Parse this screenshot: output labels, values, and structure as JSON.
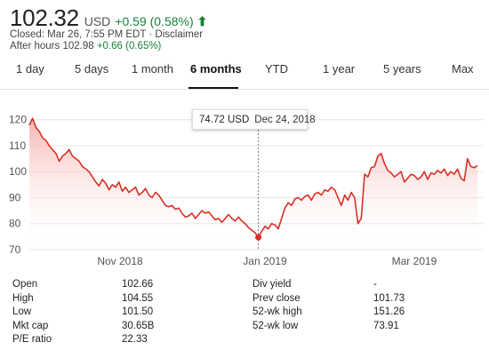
{
  "quote": {
    "price": "102.32",
    "currency": "USD",
    "change": "+0.59 (0.58%)",
    "arrow": "⬆",
    "closed_text": "Closed: Mar 26, 7:55 PM EDT · Disclaimer",
    "after_hours_label": "After hours 102.98",
    "after_hours_change": "+0.66 (0.65%)"
  },
  "tabs": [
    "1 day",
    "5 days",
    "1 month",
    "6 months",
    "YTD",
    "1 year",
    "5 years",
    "Max"
  ],
  "active_tab": "6 months",
  "tooltip": {
    "price": "74.72 USD",
    "date": "Dec 24, 2018"
  },
  "colors": {
    "line": "#d93025",
    "up": "#188038",
    "fill_top": "#f4a7a3"
  },
  "chart_data": {
    "type": "area",
    "x_labels": [
      "Nov 2018",
      "Jan 2019",
      "Mar 2019"
    ],
    "y_ticks": [
      70,
      80,
      90,
      100,
      110,
      120
    ],
    "ylim": [
      70,
      124
    ],
    "highlight_point": {
      "date": "Dec 24, 2018",
      "value": 74.72
    },
    "series": [
      {
        "values": [
          118,
          120.5,
          117,
          115.5,
          113,
          112,
          110,
          108.5,
          107,
          104,
          106,
          107,
          108.5,
          106,
          105,
          104,
          102,
          101,
          100,
          98,
          96,
          94.5,
          97,
          95.5,
          93,
          95,
          94,
          96,
          92.5,
          94,
          92,
          93,
          94,
          91,
          92,
          93.5,
          91,
          90,
          92,
          91,
          89,
          87,
          86.5,
          87,
          85.5,
          86,
          84,
          82.5,
          83,
          84,
          82,
          83.5,
          85,
          84,
          84.5,
          83,
          81.5,
          82,
          80.5,
          82,
          83.5,
          82,
          81,
          82.5,
          81,
          80,
          78.5,
          77.5,
          76.5,
          74.72,
          77,
          79,
          78,
          80,
          79.5,
          78,
          82,
          86,
          88,
          87,
          89.5,
          90,
          89,
          90.5,
          91,
          89,
          91.5,
          92,
          91,
          93,
          92.5,
          94,
          93,
          90,
          87,
          91,
          89,
          92,
          90,
          80,
          82,
          99,
          98,
          101.5,
          102,
          106,
          107,
          103,
          100.5,
          99.5,
          98,
          99,
          100,
          96,
          97.5,
          99,
          98.5,
          97,
          98,
          100,
          97,
          99.5,
          99,
          100.5,
          99.5,
          101,
          98.5,
          100,
          99,
          101,
          97.5,
          96.5,
          105,
          102,
          101.5,
          102.32
        ]
      }
    ]
  },
  "stats": {
    "left": [
      {
        "label": "Open",
        "value": "102.66"
      },
      {
        "label": "High",
        "value": "104.55"
      },
      {
        "label": "Low",
        "value": "101.50"
      },
      {
        "label": "Mkt cap",
        "value": "30.65B"
      },
      {
        "label": "P/E ratio",
        "value": "22.33"
      }
    ],
    "right": [
      {
        "label": "Div yield",
        "value": "-"
      },
      {
        "label": "Prev close",
        "value": "101.73"
      },
      {
        "label": "52-wk high",
        "value": "151.26"
      },
      {
        "label": "52-wk low",
        "value": "73.91"
      }
    ]
  }
}
